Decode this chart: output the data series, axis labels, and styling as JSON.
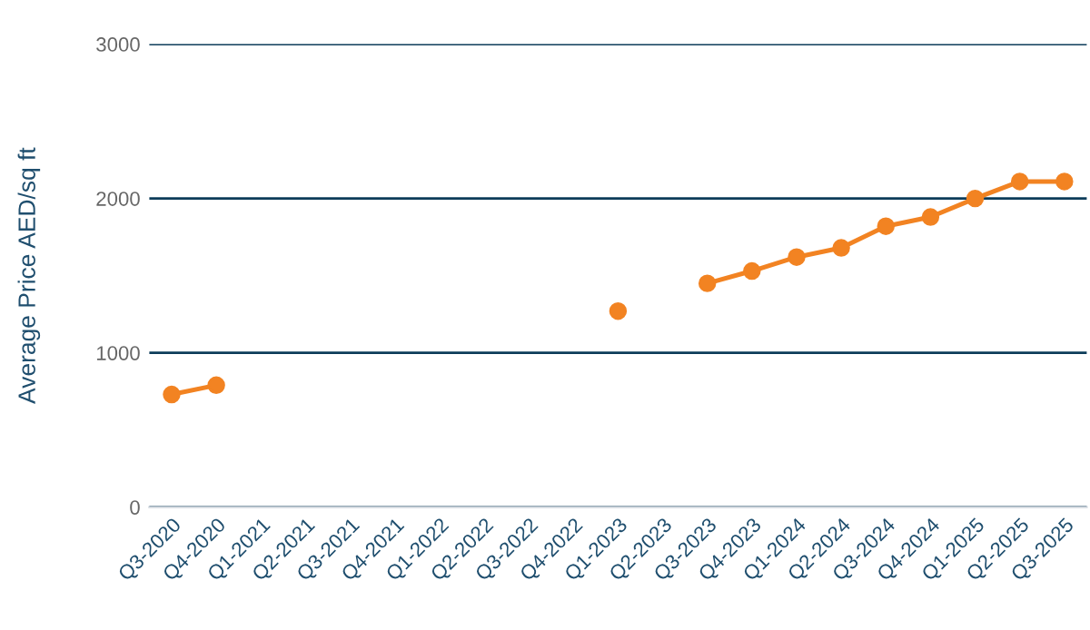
{
  "chart_data": {
    "type": "line",
    "ylabel": "Average Price AED/sq ft",
    "categories": [
      "Q3-2020",
      "Q4-2020",
      "Q1-2021",
      "Q2-2021",
      "Q3-2021",
      "Q4-2021",
      "Q1-2022",
      "Q2-2022",
      "Q3-2022",
      "Q4-2022",
      "Q1-2023",
      "Q2-2023",
      "Q3-2023",
      "Q4-2023",
      "Q1-2024",
      "Q2-2024",
      "Q3-2024",
      "Q4-2024",
      "Q1-2025",
      "Q2-2025",
      "Q3-2025"
    ],
    "series": [
      {
        "color": "#f28322",
        "values": [
          730,
          790,
          null,
          null,
          null,
          null,
          null,
          null,
          null,
          null,
          1270,
          null,
          1450,
          1530,
          1620,
          1680,
          1820,
          1880,
          2000,
          2110,
          2110
        ]
      }
    ],
    "ylim": [
      0,
      3000
    ],
    "yticks": [
      0,
      1000,
      2000,
      3000
    ],
    "grid": "y",
    "marker": "circle",
    "line_style": "solid"
  }
}
